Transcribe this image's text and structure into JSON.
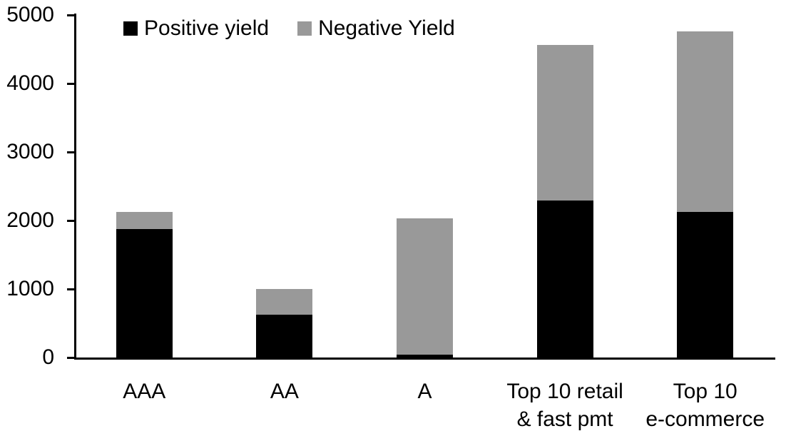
{
  "chart_data": {
    "type": "bar",
    "stacked": true,
    "title": "",
    "xlabel": "",
    "ylabel": "",
    "categories": [
      "AAA",
      "AA",
      "A",
      "Top 10 retail\n& fast pmt",
      "Top 10\ne-commerce"
    ],
    "series": [
      {
        "name": "Positive yield",
        "color": "#000000",
        "values": [
          1880,
          620,
          45,
          2290,
          2130
        ]
      },
      {
        "name": "Negative Yield",
        "color": "#999999",
        "values": [
          240,
          380,
          1990,
          2270,
          2630
        ]
      }
    ],
    "ylim": [
      0,
      5000
    ],
    "yticks": [
      0,
      1000,
      2000,
      3000,
      4000,
      5000
    ],
    "legend_position": "top-left",
    "grid": false,
    "axis_color": "#000000",
    "background_color": "#ffffff"
  }
}
